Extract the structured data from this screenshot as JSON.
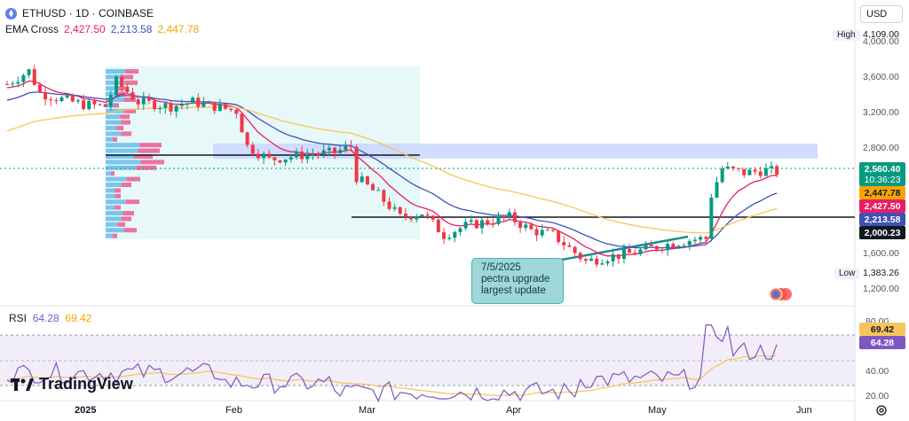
{
  "header": {
    "symbol_line": "ETHUSD · 1D · COINBASE",
    "indicator_name": "EMA Cross",
    "ema_values": [
      "2,427.50",
      "2,213.58",
      "2,447.78"
    ],
    "ema_colors": [
      "#e91e63",
      "#3f51b5",
      "#f7a600"
    ],
    "currency": "USD"
  },
  "price_axis": {
    "ticks": [
      "4,000.00",
      "3,600.00",
      "3,200.00",
      "2,800.00",
      "1,600.00",
      "1,200.00"
    ],
    "high_label": "High",
    "high_value": "4,109.00",
    "low_label": "Low",
    "low_value": "1,383.26",
    "tags": [
      {
        "text": "2,560.40",
        "bg": "#089981",
        "fg": "#ffffff"
      },
      {
        "text": "10:36:23",
        "bg": "#089981",
        "fg": "#ffffff"
      },
      {
        "text": "2,447.78",
        "bg": "#f7a600",
        "fg": "#131722"
      },
      {
        "text": "2,427.50",
        "bg": "#e91e63",
        "fg": "#ffffff"
      },
      {
        "text": "2,213.58",
        "bg": "#3f51b5",
        "fg": "#ffffff"
      },
      {
        "text": "2,000.23",
        "bg": "#131722",
        "fg": "#ffffff"
      }
    ]
  },
  "annotation": {
    "lines": [
      "7/5/2025",
      "pectra upgrade",
      "largest update"
    ]
  },
  "rsi": {
    "name": "RSI",
    "values": [
      "64.28",
      "69.42"
    ],
    "ticks": [
      "80.00",
      "40.00",
      "20.00"
    ],
    "tag_rsi": "64.28",
    "tag_ma": "69.42",
    "line_color": "#7e57c2",
    "ma_color": "#f7c55c"
  },
  "time_axis": {
    "labels": [
      "2025",
      "Feb",
      "Mar",
      "Apr",
      "May",
      "Jun"
    ]
  },
  "branding": {
    "name": "TradingView"
  },
  "chart_data": {
    "type": "candlestick",
    "title": "ETHUSD · 1D · COINBASE",
    "ylim": [
      1100,
      4200
    ],
    "close_series_approx": {
      "x": [
        "2025-01-01",
        "2025-01-08",
        "2025-01-15",
        "2025-01-22",
        "2025-01-29",
        "2025-02-05",
        "2025-02-12",
        "2025-02-19",
        "2025-02-26",
        "2025-03-05",
        "2025-03-12",
        "2025-03-19",
        "2025-03-26",
        "2025-04-02",
        "2025-04-09",
        "2025-04-16",
        "2025-04-23",
        "2025-04-30",
        "2025-05-07",
        "2025-05-14",
        "2025-05-21"
      ],
      "values": [
        3350,
        3300,
        3280,
        3250,
        3200,
        2750,
        2700,
        2740,
        2300,
        2200,
        1900,
        1980,
        2000,
        1800,
        1550,
        1600,
        1780,
        1800,
        2350,
        2600,
        2560
      ]
    },
    "horizontal_levels": [
      2000.23,
      2700
    ],
    "rsi": {
      "last": 64.28,
      "ma": 69.42,
      "ylim": [
        20,
        90
      ]
    }
  }
}
